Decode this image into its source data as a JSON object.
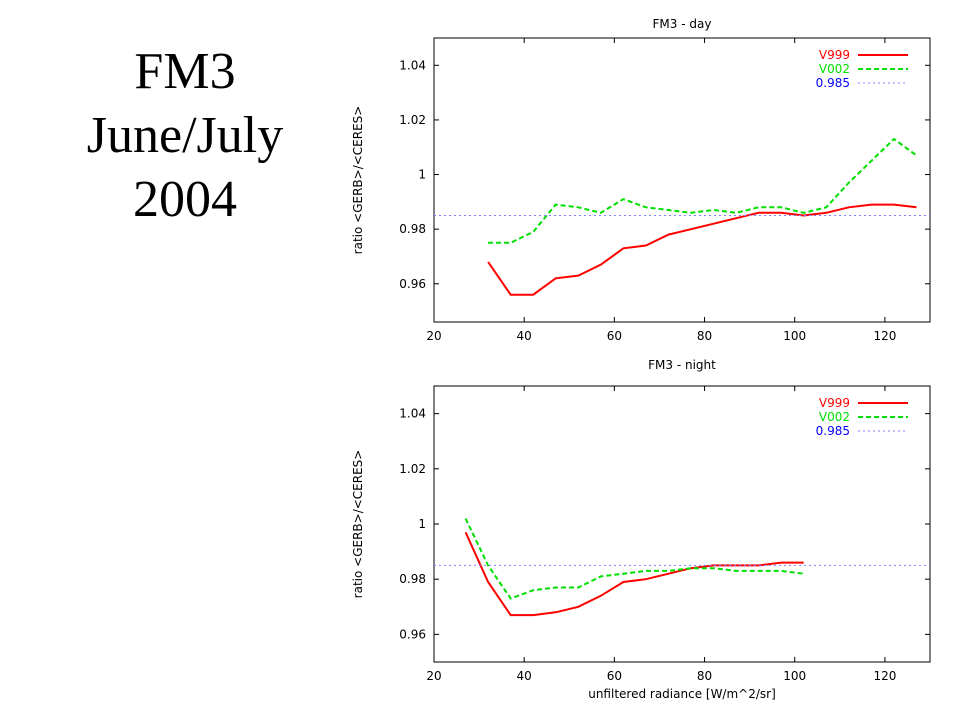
{
  "slide": {
    "title_lines": [
      "FM3",
      "June/July",
      "2004"
    ]
  },
  "colors": {
    "V999": "#ff0000",
    "V002": "#00e000",
    "ref": "#8080ff",
    "legend_ref_text": "#0000ff"
  },
  "chart_data": [
    {
      "type": "line",
      "title": "FM3 - day",
      "xlabel": "",
      "ylabel": "ratio <GERB>/<CERES>",
      "xlim": [
        20,
        130
      ],
      "ylim": [
        0.946,
        1.05
      ],
      "xticks": [
        20,
        40,
        60,
        80,
        100,
        120
      ],
      "yticks": [
        0.96,
        0.98,
        1,
        1.02,
        1.04
      ],
      "ytick_labels": [
        "0.96",
        "0.98",
        "1",
        "1.02",
        "1.04"
      ],
      "legend_position": "top-right",
      "series": [
        {
          "name": "V999",
          "style": "solid",
          "x": [
            32,
            37,
            42,
            47,
            52,
            57,
            62,
            67,
            72,
            77,
            82,
            87,
            92,
            97,
            102,
            107,
            112,
            117,
            122,
            127
          ],
          "y": [
            0.968,
            0.956,
            0.956,
            0.962,
            0.963,
            0.967,
            0.973,
            0.974,
            0.978,
            0.98,
            0.982,
            0.984,
            0.986,
            0.986,
            0.985,
            0.986,
            0.988,
            0.989,
            0.989,
            0.988
          ]
        },
        {
          "name": "V002",
          "style": "dashed",
          "x": [
            32,
            37,
            42,
            47,
            52,
            57,
            62,
            67,
            72,
            77,
            82,
            87,
            92,
            97,
            102,
            107,
            112,
            117,
            122,
            127
          ],
          "y": [
            0.975,
            0.975,
            0.979,
            0.989,
            0.988,
            0.986,
            0.991,
            0.988,
            0.987,
            0.986,
            0.987,
            0.986,
            0.988,
            0.988,
            0.986,
            0.988,
            0.997,
            1.005,
            1.013,
            1.007
          ]
        },
        {
          "name": "0.985",
          "style": "dotted",
          "x": [
            20,
            130
          ],
          "y": [
            0.985,
            0.985
          ]
        }
      ]
    },
    {
      "type": "line",
      "title": "FM3 - night",
      "xlabel": "unfiltered radiance [W/m^2/sr]",
      "ylabel": "ratio <GERB>/<CERES>",
      "xlim": [
        20,
        130
      ],
      "ylim": [
        0.95,
        1.05
      ],
      "xticks": [
        20,
        40,
        60,
        80,
        100,
        120
      ],
      "yticks": [
        0.96,
        0.98,
        1,
        1.02,
        1.04
      ],
      "ytick_labels": [
        "0.96",
        "0.98",
        "1",
        "1.02",
        "1.04"
      ],
      "legend_position": "top-right",
      "series": [
        {
          "name": "V999",
          "style": "solid",
          "x": [
            27,
            32,
            37,
            42,
            47,
            52,
            57,
            62,
            67,
            72,
            77,
            82,
            87,
            92,
            97,
            102
          ],
          "y": [
            0.997,
            0.979,
            0.967,
            0.967,
            0.968,
            0.97,
            0.974,
            0.979,
            0.98,
            0.982,
            0.984,
            0.985,
            0.985,
            0.985,
            0.986,
            0.986
          ]
        },
        {
          "name": "V002",
          "style": "dashed",
          "x": [
            27,
            32,
            37,
            42,
            47,
            52,
            57,
            62,
            67,
            72,
            77,
            82,
            87,
            92,
            97,
            102
          ],
          "y": [
            1.002,
            0.985,
            0.973,
            0.976,
            0.977,
            0.977,
            0.981,
            0.982,
            0.983,
            0.983,
            0.984,
            0.984,
            0.983,
            0.983,
            0.983,
            0.982
          ]
        },
        {
          "name": "0.985",
          "style": "dotted",
          "x": [
            20,
            130
          ],
          "y": [
            0.985,
            0.985
          ]
        }
      ]
    }
  ]
}
